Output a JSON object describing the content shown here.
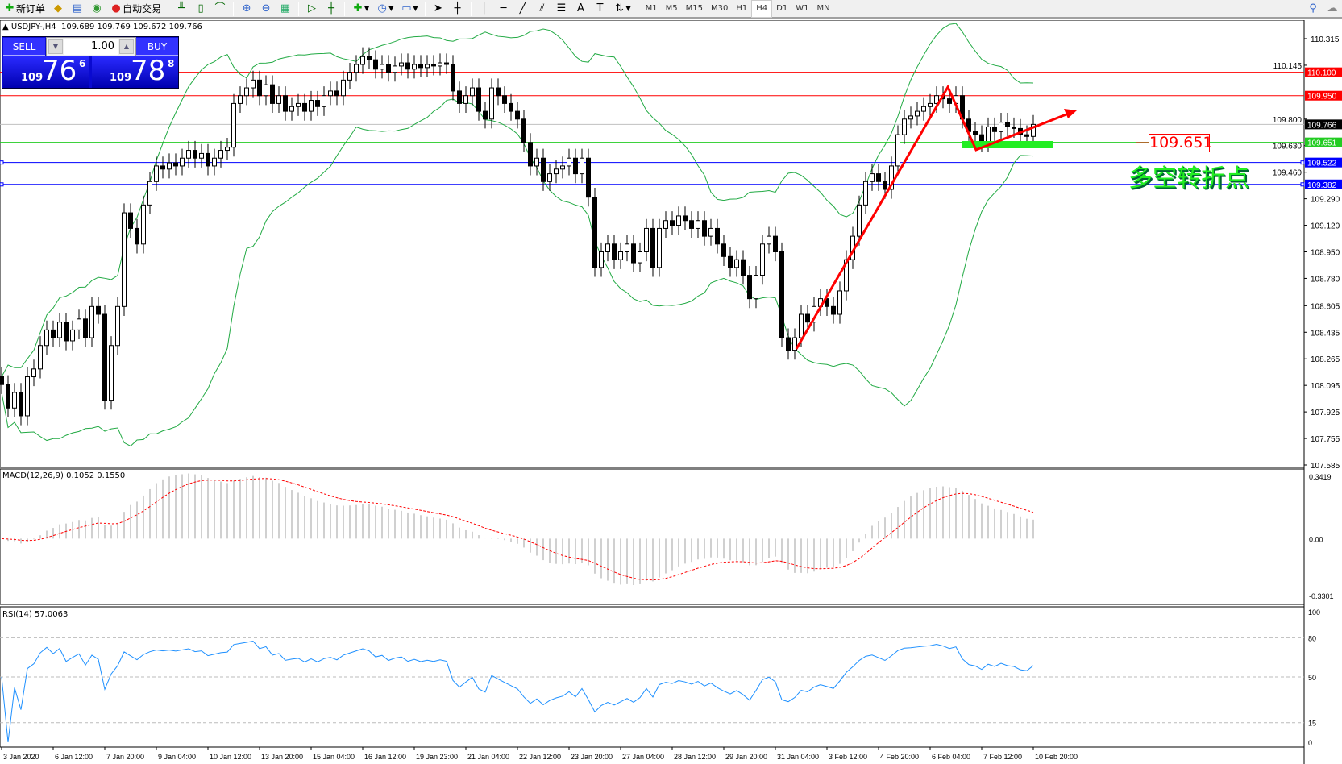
{
  "toolbar": {
    "new_order": "新订单",
    "auto_trading": "自动交易",
    "timeframes": [
      "M1",
      "M5",
      "M15",
      "M30",
      "H1",
      "H4",
      "D1",
      "W1",
      "MN"
    ],
    "active_timeframe": "H4",
    "icons": [
      "new-order-icon",
      "history-icon",
      "market-watch-icon",
      "signals-icon",
      "auto-trading-icon",
      "bar-chart-icon",
      "candlestick-icon",
      "line-chart-icon",
      "zoom-in-icon",
      "zoom-out-icon",
      "tile-windows-icon",
      "auto-scroll-icon",
      "chart-shift-icon",
      "indicators-icon",
      "periods-icon",
      "templates-icon",
      "cursor-icon",
      "crosshair-icon",
      "vertical-line-icon",
      "horizontal-line-icon",
      "trendline-icon",
      "equidistant-channel-icon",
      "fibonacci-icon",
      "text-icon",
      "text-label-icon",
      "arrows-icon",
      "search-icon",
      "chat-icon"
    ]
  },
  "header": {
    "arrow": "▲",
    "symbol": "USDJPY-,H4",
    "ohlc": "109.689 109.769 109.672 109.766"
  },
  "trade_panel": {
    "sell": "SELL",
    "buy": "BUY",
    "lot": "1.00",
    "sell_small": "109",
    "sell_big": "76",
    "sell_pip": "6",
    "buy_small": "109",
    "buy_big": "78",
    "buy_pip": "8"
  },
  "macd_label": "MACD(12,26,9) 0.1052 0.1550",
  "rsi_label": "RSI(14) 57.0063",
  "annotations": {
    "price_box": "109.651",
    "text": "多空转折点"
  },
  "colors": {
    "bull_band": "#22aa44",
    "resistance": "#ff0000",
    "support": "#0000ff",
    "pivot": "#22cc22",
    "current": "#c0c0c0",
    "rsi": "#1e90ff",
    "macd_signal": "#ff0000",
    "macd_hist": "#c0c0c0",
    "arrow": "#ff0000"
  },
  "chart_data": {
    "type": "candlestick",
    "symbol": "USDJPY-",
    "timeframe": "H4",
    "ylim": [
      107.585,
      110.315
    ],
    "price_ticks": [
      "110.315",
      "110.145",
      "109.800",
      "109.630",
      "109.460",
      "109.290",
      "109.120",
      "108.950",
      "108.780",
      "108.605",
      "108.435",
      "108.265",
      "108.095",
      "107.925",
      "107.755",
      "107.585"
    ],
    "hlines": [
      {
        "price": 110.1,
        "label": "110.100",
        "kind": "resistance"
      },
      {
        "price": 109.95,
        "label": "109.950",
        "kind": "resistance"
      },
      {
        "price": 109.766,
        "label": "109.766",
        "kind": "current"
      },
      {
        "price": 109.651,
        "label": "109.651",
        "kind": "pivot"
      },
      {
        "price": 109.522,
        "label": "109.522",
        "kind": "support"
      },
      {
        "price": 109.382,
        "label": "109.382",
        "kind": "support"
      }
    ],
    "date_labels": [
      "3 Jan 2020",
      "6 Jan 12:00",
      "7 Jan 20:00",
      "9 Jan 04:00",
      "10 Jan 12:00",
      "13 Jan 20:00",
      "15 Jan 04:00",
      "16 Jan 12:00",
      "19 Jan 23:00",
      "21 Jan 04:00",
      "22 Jan 12:00",
      "23 Jan 20:00",
      "27 Jan 04:00",
      "28 Jan 12:00",
      "29 Jan 20:00",
      "31 Jan 04:00",
      "3 Feb 12:00",
      "4 Feb 20:00",
      "6 Feb 04:00",
      "7 Feb 12:00",
      "10 Feb 20:00"
    ],
    "close": [
      108.1,
      107.95,
      108.05,
      107.9,
      108.15,
      108.2,
      108.35,
      108.45,
      108.4,
      108.5,
      108.38,
      108.45,
      108.52,
      108.4,
      108.6,
      108.55,
      108.0,
      108.35,
      108.6,
      109.2,
      109.1,
      109.0,
      109.25,
      109.4,
      109.5,
      109.48,
      109.52,
      109.5,
      109.55,
      109.6,
      109.55,
      109.58,
      109.5,
      109.55,
      109.6,
      109.62,
      109.9,
      109.95,
      110.0,
      110.05,
      109.95,
      110.02,
      109.9,
      109.95,
      109.85,
      109.88,
      109.9,
      109.85,
      109.92,
      109.88,
      109.95,
      109.98,
      109.95,
      110.05,
      110.1,
      110.15,
      110.2,
      110.18,
      110.12,
      110.15,
      110.1,
      110.14,
      110.16,
      110.12,
      110.15,
      110.13,
      110.15,
      110.14,
      110.16,
      110.15,
      109.98,
      109.9,
      109.95,
      110.0,
      109.85,
      109.8,
      110.0,
      109.95,
      109.9,
      109.85,
      109.8,
      109.65,
      109.5,
      109.55,
      109.4,
      109.45,
      109.48,
      109.5,
      109.55,
      109.45,
      109.55,
      109.3,
      108.85,
      108.95,
      109.0,
      108.9,
      108.95,
      109.0,
      108.88,
      108.95,
      109.1,
      108.85,
      109.1,
      109.15,
      109.12,
      109.18,
      109.15,
      109.1,
      109.15,
      109.05,
      109.1,
      109.0,
      108.92,
      108.85,
      108.9,
      108.8,
      108.65,
      108.8,
      109.0,
      109.05,
      108.95,
      108.4,
      108.32,
      108.4,
      108.55,
      108.5,
      108.6,
      108.65,
      108.6,
      108.55,
      108.7,
      108.9,
      109.05,
      109.25,
      109.4,
      109.45,
      109.4,
      109.35,
      109.5,
      109.7,
      109.8,
      109.82,
      109.85,
      109.88,
      109.9,
      109.95,
      109.93,
      109.9,
      109.95,
      109.8,
      109.72,
      109.7,
      109.65,
      109.75,
      109.72,
      109.78,
      109.75,
      109.74,
      109.7,
      109.689,
      109.766
    ],
    "indicators": {
      "bollinger": [
        20,
        2
      ],
      "macd": {
        "params": [
          12,
          26,
          9
        ],
        "main": 0.1052,
        "signal": 0.155,
        "ylim": [
          -0.3301,
          0.3419
        ],
        "ticks": [
          "0.3419",
          "0.00",
          "-0.3301"
        ]
      },
      "rsi": {
        "period": 14,
        "value": 57.0063,
        "ylim": [
          0,
          100
        ],
        "levels": [
          80,
          50,
          15
        ],
        "ticks": [
          "100",
          "80",
          "50",
          "15",
          "0"
        ]
      }
    }
  }
}
